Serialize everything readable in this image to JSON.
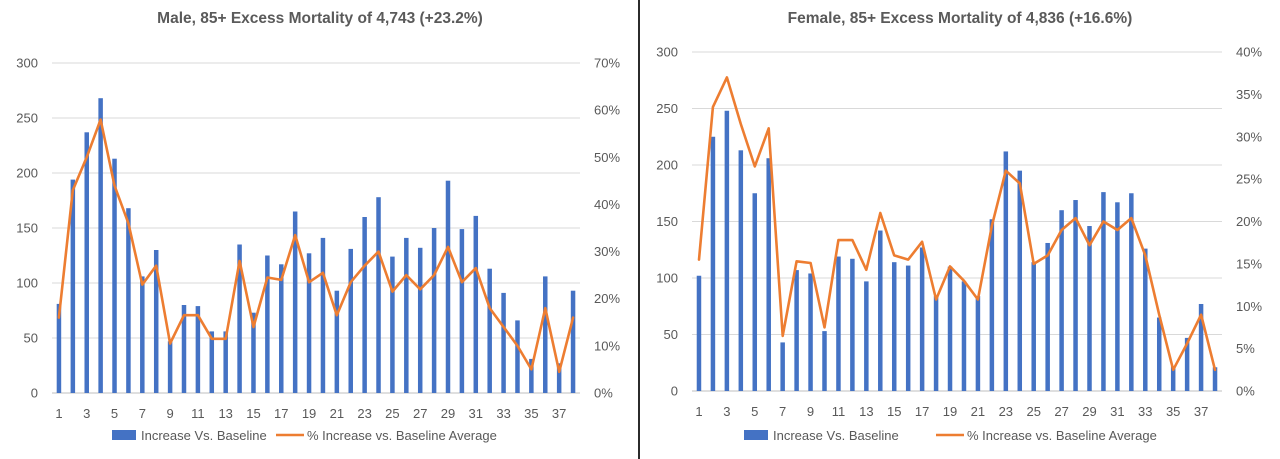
{
  "chart_data": [
    {
      "type": "bar",
      "title": "Male, 85+ Excess Mortality of 4,743 (+23.2%)",
      "xlabel": "",
      "ylabel": "",
      "x": [
        1,
        2,
        3,
        4,
        5,
        6,
        7,
        8,
        9,
        10,
        11,
        12,
        13,
        14,
        15,
        16,
        17,
        18,
        19,
        20,
        21,
        22,
        23,
        24,
        25,
        26,
        27,
        28,
        29,
        30,
        31,
        32,
        33,
        34,
        35,
        36,
        37,
        38
      ],
      "x_tick_labels": [
        "1",
        "3",
        "5",
        "7",
        "9",
        "11",
        "13",
        "15",
        "17",
        "19",
        "21",
        "23",
        "25",
        "27",
        "29",
        "31",
        "33",
        "35",
        "37"
      ],
      "ylim": [
        0,
        300
      ],
      "y_ticks": [
        "0",
        "50",
        "100",
        "150",
        "200",
        "250",
        "300"
      ],
      "y2lim": [
        0,
        0.7
      ],
      "y2_ticks": [
        "0%",
        "10%",
        "20%",
        "30%",
        "40%",
        "50%",
        "60%",
        "70%"
      ],
      "series": [
        {
          "name": "Increase Vs. Baseline",
          "kind": "bar",
          "axis": "left",
          "color": "#4472C4",
          "values": [
            81,
            194,
            237,
            268,
            213,
            168,
            106,
            130,
            47,
            80,
            79,
            56,
            56,
            135,
            73,
            125,
            117,
            165,
            127,
            141,
            93,
            131,
            160,
            178,
            124,
            141,
            132,
            150,
            193,
            149,
            161,
            113,
            91,
            66,
            31,
            106,
            27,
            93
          ]
        },
        {
          "name": "% Increase vs. Baseline Average",
          "kind": "line",
          "axis": "right",
          "color": "#ED7D31",
          "values": [
            0.16,
            0.43,
            0.5,
            0.58,
            0.44,
            0.36,
            0.23,
            0.27,
            0.105,
            0.165,
            0.165,
            0.115,
            0.115,
            0.28,
            0.14,
            0.245,
            0.24,
            0.335,
            0.235,
            0.255,
            0.165,
            0.235,
            0.27,
            0.3,
            0.215,
            0.25,
            0.22,
            0.25,
            0.31,
            0.235,
            0.265,
            0.18,
            0.14,
            0.1,
            0.05,
            0.18,
            0.045,
            0.16
          ]
        }
      ],
      "legend_position": "bottom",
      "grid": true
    },
    {
      "type": "bar",
      "title": "Female, 85+ Excess Mortality of 4,836 (+16.6%)",
      "xlabel": "",
      "ylabel": "",
      "x": [
        1,
        2,
        3,
        4,
        5,
        6,
        7,
        8,
        9,
        10,
        11,
        12,
        13,
        14,
        15,
        16,
        17,
        18,
        19,
        20,
        21,
        22,
        23,
        24,
        25,
        26,
        27,
        28,
        29,
        30,
        31,
        32,
        33,
        34,
        35,
        36,
        37,
        38
      ],
      "x_tick_labels": [
        "1",
        "3",
        "5",
        "7",
        "9",
        "11",
        "13",
        "15",
        "17",
        "19",
        "21",
        "23",
        "25",
        "27",
        "29",
        "31",
        "33",
        "35",
        "37"
      ],
      "ylim": [
        0,
        300
      ],
      "y_ticks": [
        "0",
        "50",
        "100",
        "150",
        "200",
        "250",
        "300"
      ],
      "y2lim": [
        0,
        0.4
      ],
      "y2_ticks": [
        "0%",
        "5%",
        "10%",
        "15%",
        "20%",
        "25%",
        "30%",
        "35%",
        "40%"
      ],
      "series": [
        {
          "name": "Increase Vs. Baseline",
          "kind": "bar",
          "axis": "left",
          "color": "#4472C4",
          "values": [
            102,
            225,
            248,
            213,
            175,
            206,
            43,
            107,
            104,
            53,
            119,
            117,
            97,
            142,
            114,
            111,
            127,
            84,
            110,
            97,
            84,
            152,
            212,
            195,
            114,
            131,
            160,
            169,
            146,
            176,
            167,
            175,
            126,
            65,
            22,
            47,
            77,
            21
          ]
        },
        {
          "name": "% Increase vs. Baseline Average",
          "kind": "line",
          "axis": "right",
          "color": "#ED7D31",
          "values": [
            0.155,
            0.335,
            0.37,
            0.315,
            0.265,
            0.31,
            0.065,
            0.153,
            0.151,
            0.075,
            0.178,
            0.178,
            0.143,
            0.21,
            0.16,
            0.155,
            0.176,
            0.108,
            0.147,
            0.13,
            0.108,
            0.195,
            0.26,
            0.245,
            0.15,
            0.16,
            0.19,
            0.204,
            0.172,
            0.2,
            0.19,
            0.204,
            0.16,
            0.09,
            0.025,
            0.056,
            0.09,
            0.025
          ]
        }
      ],
      "legend_position": "bottom",
      "grid": true
    }
  ]
}
